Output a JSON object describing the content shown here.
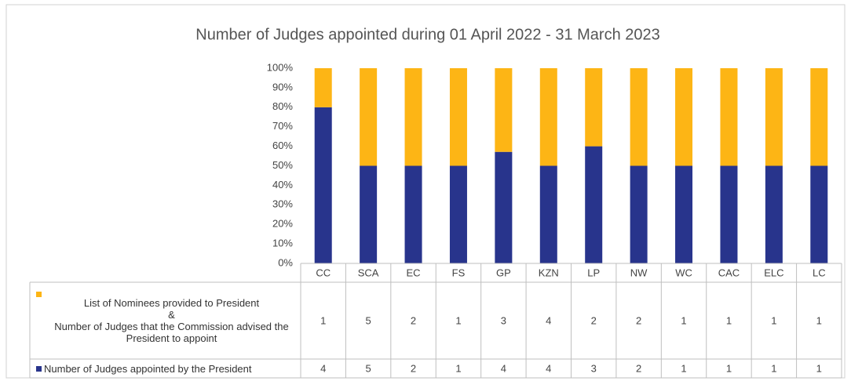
{
  "chart_data": {
    "type": "bar",
    "stacking": "percent",
    "title": "Number of Judges appointed during 01 April 2022 - 31 March 2023",
    "categories": [
      "CC",
      "SCA",
      "EC",
      "FS",
      "GP",
      "KZN",
      "LP",
      "NW",
      "WC",
      "CAC",
      "ELC",
      "LC"
    ],
    "series": [
      {
        "name": "Number of Judges appointed by the President",
        "color": "#28348c",
        "values": [
          4,
          5,
          2,
          1,
          4,
          4,
          3,
          2,
          1,
          1,
          1,
          1
        ]
      },
      {
        "name": "List of Nominees provided to President\n&\nNumber of Judges that the Commission advised the President to appoint",
        "color": "#fdb515",
        "values": [
          1,
          5,
          2,
          1,
          3,
          4,
          2,
          2,
          1,
          1,
          1,
          1
        ]
      }
    ],
    "ylim": [
      0,
      100
    ],
    "yticks": [
      {
        "value": 0,
        "label": "0%"
      },
      {
        "value": 10,
        "label": "10%"
      },
      {
        "value": 20,
        "label": "20%"
      },
      {
        "value": 30,
        "label": "30%"
      },
      {
        "value": 40,
        "label": "40%"
      },
      {
        "value": 50,
        "label": "50%"
      },
      {
        "value": 60,
        "label": "60%"
      },
      {
        "value": 70,
        "label": "70%"
      },
      {
        "value": 80,
        "label": "80%"
      },
      {
        "value": 90,
        "label": "90%"
      },
      {
        "value": 100,
        "label": "100%"
      }
    ],
    "grid": false,
    "legend": "table"
  }
}
